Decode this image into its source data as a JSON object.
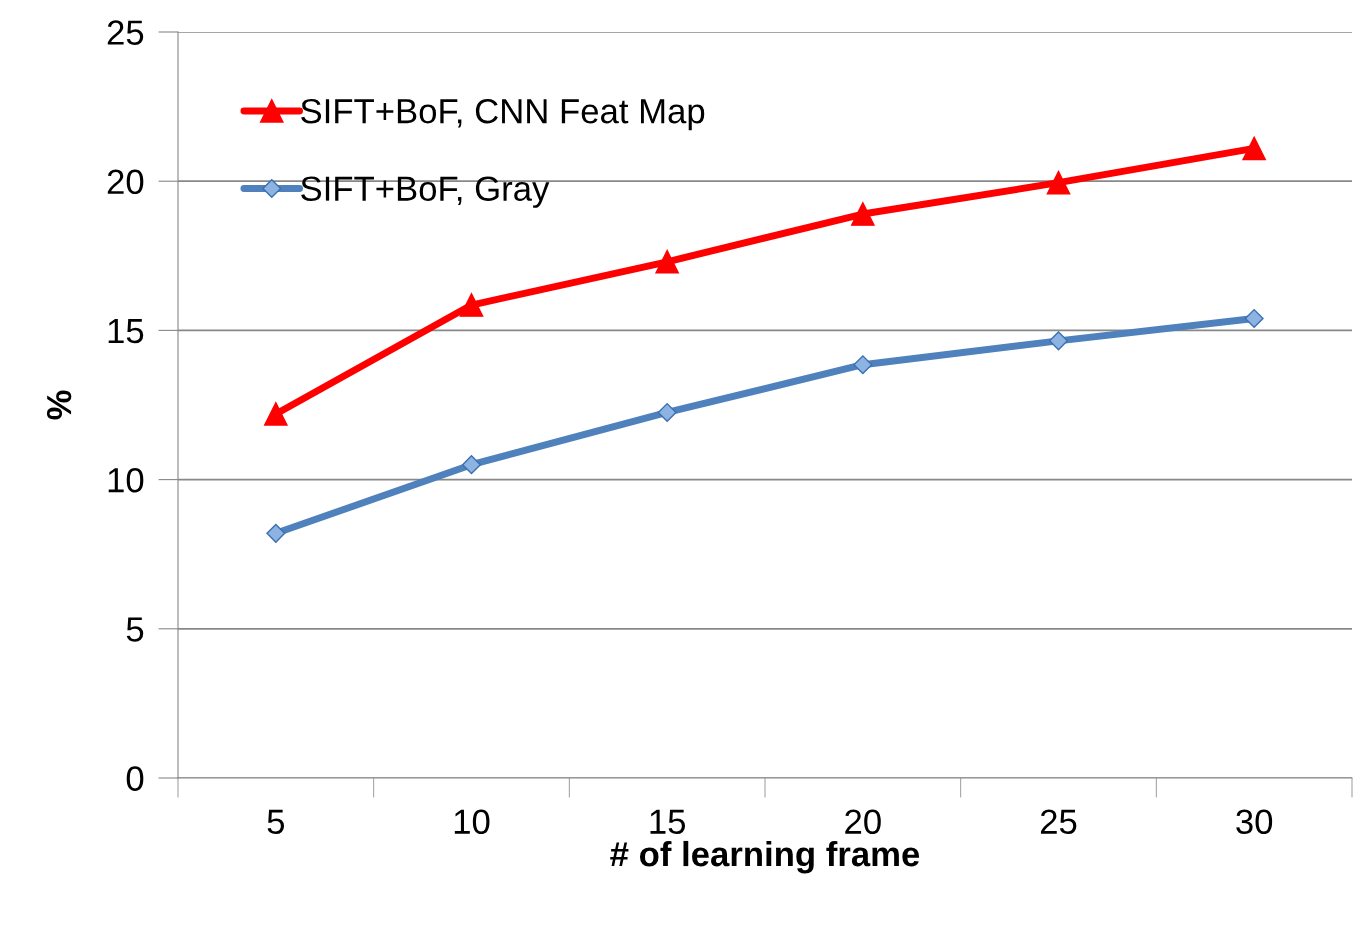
{
  "chart_data": {
    "type": "line",
    "xlabel": "# of learning frame",
    "ylabel": "%",
    "categories": [
      "5",
      "10",
      "15",
      "20",
      "25",
      "30"
    ],
    "series": [
      {
        "name": "SIFT+BoF, CNN Feat Map",
        "color": "#ff0000",
        "marker": "triangle",
        "values": [
          12.2,
          15.85,
          17.3,
          18.9,
          19.95,
          21.1
        ]
      },
      {
        "name": "SIFT+BoF, Gray",
        "color": "#4f81bd",
        "marker": "diamond",
        "values": [
          8.2,
          10.5,
          12.25,
          13.85,
          14.65,
          15.4
        ]
      }
    ],
    "ylim": [
      0,
      25
    ],
    "yticks": [
      0,
      5,
      10,
      15,
      20,
      25
    ],
    "grid": "y",
    "legend": "top left",
    "line_style": "solid"
  }
}
